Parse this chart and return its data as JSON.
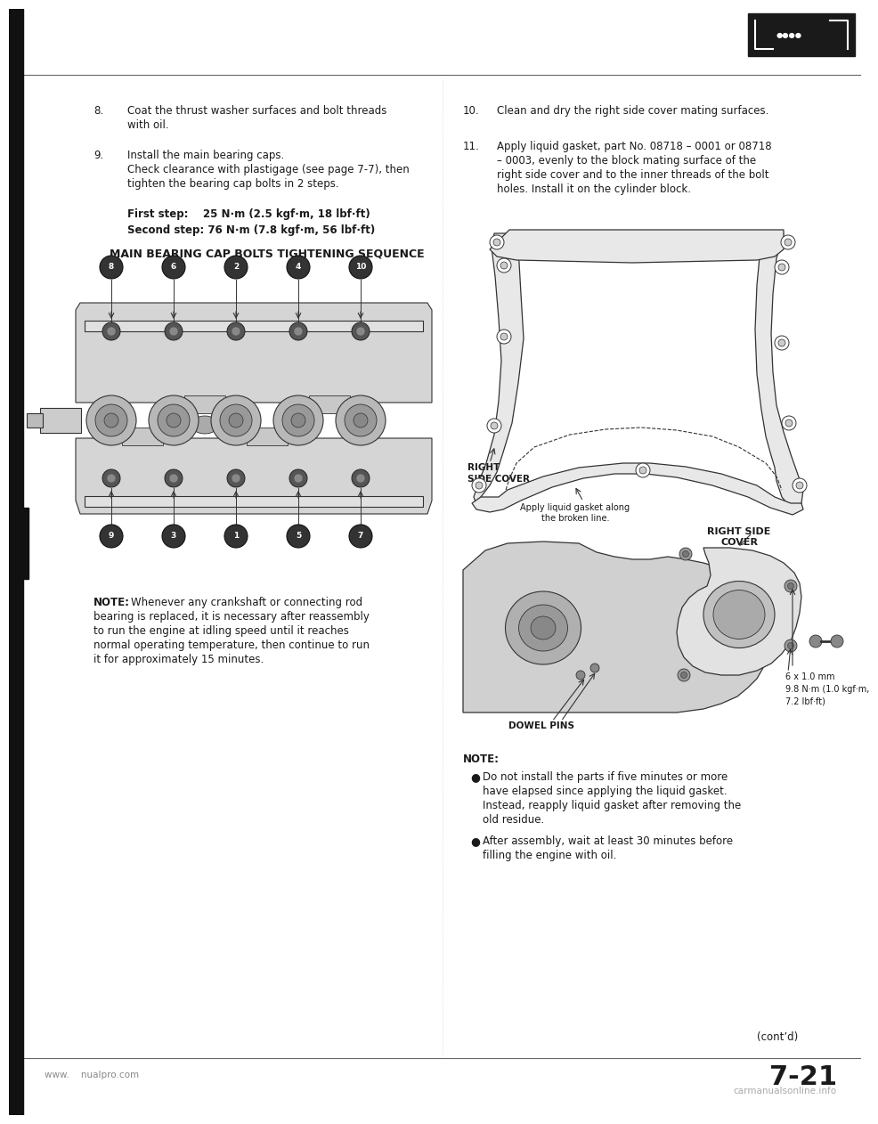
{
  "page_bg": "#ffffff",
  "left_bar_color": "#111111",
  "page_number": "7-21",
  "watermark_left": "www.    nualpro.com",
  "watermark_right": "carmanualsonline.info",
  "cont_text": "(cont’d)",
  "item8_num": "8.",
  "item8_text_line1": "Coat the thrust washer surfaces and bolt threads",
  "item8_text_line2": "with oil.",
  "item9_num": "9.",
  "item9_text_line1": "Install the main bearing caps.",
  "item9_text_line2": "Check clearance with plastigage (see page 7-7), then",
  "item9_text_line3": "tighten the bearing cap bolts in 2 steps.",
  "first_step_label": "First step:",
  "first_step_value": "25 N·m (2.5 kgf·m, 18 lbf·ft)",
  "second_step_label": "Second step: 76 N·m (7.8 kgf·m, 56 lbf·ft)",
  "diagram1_title": "MAIN BEARING CAP BOLTS TIGHTENING SEQUENCE",
  "bolt_top_labels": [
    "8",
    "6",
    "2",
    "4",
    "10"
  ],
  "bolt_bot_labels": [
    "9",
    "3",
    "1",
    "5",
    "7"
  ],
  "note1_label": "NOTE:",
  "note1_line1": "Whenever any crankshaft or connecting rod",
  "note1_line2": "bearing is replaced, it is necessary after reassembly",
  "note1_line3": "to run the engine at idling speed until it reaches",
  "note1_line4": "normal operating temperature, then continue to run",
  "note1_line5": "it for approximately 15 minutes.",
  "item10_num": "10.",
  "item10_text": "Clean and dry the right side cover mating surfaces.",
  "item11_num": "11.",
  "item11_text_line1": "Apply liquid gasket, part No. 08718 – 0001 or 08718",
  "item11_text_line2": "– 0003, evenly to the block mating surface of the",
  "item11_text_line3": "right side cover and to the inner threads of the bolt",
  "item11_text_line4": "holes. Install it on the cylinder block.",
  "right_side_cover_label": "RIGHT\nSIDE COVER",
  "apply_gasket_label": "Apply liquid gasket along\nthe broken line.",
  "right_side_cover2_label": "RIGHT SIDE\nCOVER",
  "dowel_pins_label": "DOWEL PINS",
  "bolt_spec_line1": "6 x 1.0 mm",
  "bolt_spec_line2": "9.8 N·m (1.0 kgf·m,",
  "bolt_spec_line3": "7.2 lbf·ft)",
  "note2_header": "NOTE:",
  "note2_b1_l1": "Do not install the parts if five minutes or more",
  "note2_b1_l2": "have elapsed since applying the liquid gasket.",
  "note2_b1_l3": "Instead, reapply liquid gasket after removing the",
  "note2_b1_l4": "old residue.",
  "note2_b2_l1": "After assembly, wait at least 30 minutes before",
  "note2_b2_l2": "filling the engine with oil.",
  "text_color": "#1a1a1a",
  "line_color": "#555555",
  "draw_color": "#333333"
}
